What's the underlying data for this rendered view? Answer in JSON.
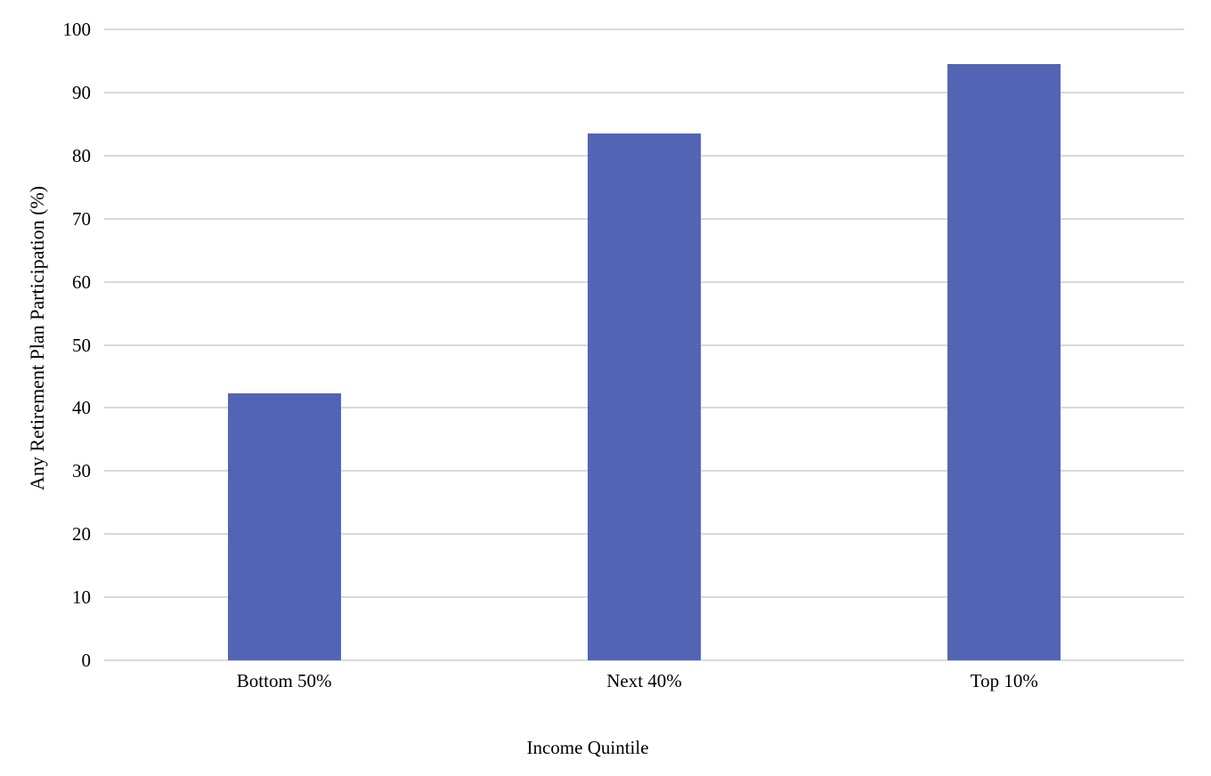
{
  "chart_data": {
    "type": "bar",
    "title": "",
    "categories": [
      "Bottom 50%",
      "Next 40%",
      "Top 10%"
    ],
    "values": [
      42.3,
      83.5,
      94.5
    ],
    "series": [
      {
        "name": "Any Retirement Plan Participation",
        "values": [
          42.3,
          83.5,
          94.5
        ]
      }
    ],
    "xlabel": "Income Quintile",
    "ylabel": "Any Retirement Plan Participation (%)",
    "ylim": [
      0,
      100
    ],
    "ytick_step": 10,
    "yticks": [
      0,
      10,
      20,
      30,
      40,
      50,
      60,
      70,
      80,
      90,
      100
    ],
    "grid": "horizontal-only",
    "legend": "none",
    "colors": {
      "bar": "#5464B4",
      "gridline": "#D9D9D9",
      "text": "#000000",
      "background": "#FFFFFF"
    }
  }
}
